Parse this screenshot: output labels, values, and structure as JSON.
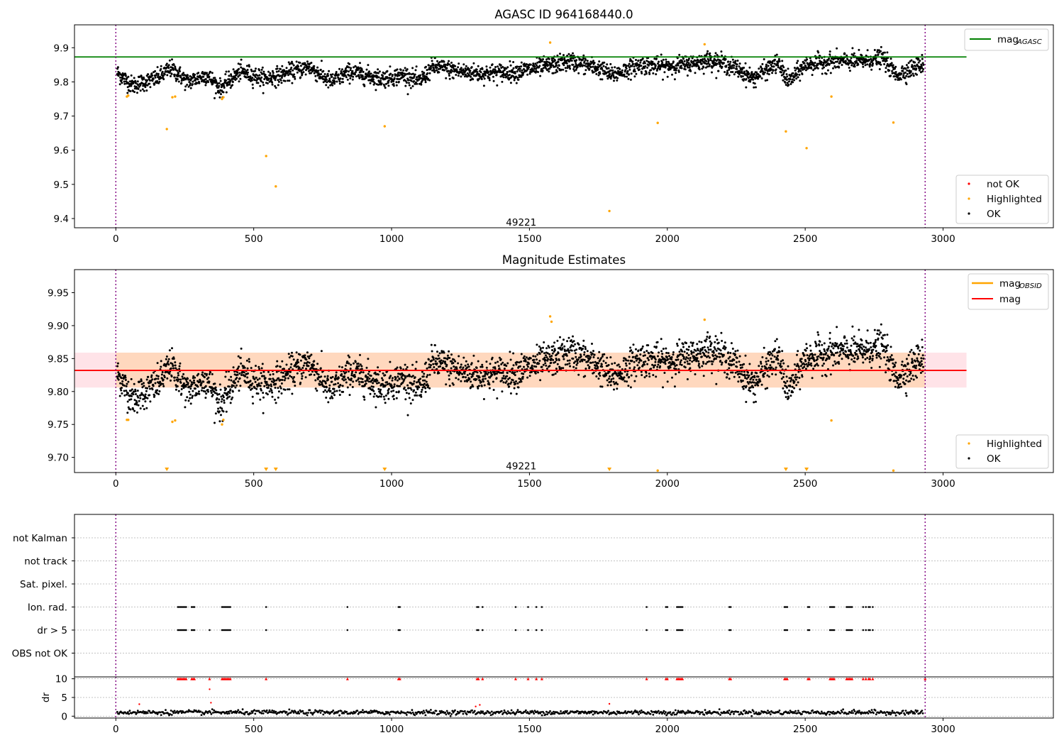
{
  "chart_data": [
    {
      "type": "scatter",
      "title": "AGASC ID 964168440.0",
      "xlim": [
        -150,
        3400
      ],
      "ylim": [
        9.373,
        9.967
      ],
      "xticks": [
        0,
        500,
        1000,
        1500,
        2000,
        2500,
        3000
      ],
      "yticks": [
        9.4,
        9.5,
        9.6,
        9.7,
        9.8,
        9.9
      ],
      "ytick_labels": [
        "9.4",
        "9.5",
        "9.6",
        "9.7",
        "9.8",
        "9.9"
      ],
      "grid": false,
      "legend_top": {
        "position": "top-right",
        "entries": [
          {
            "label_main": "mag",
            "label_sub": "AGASC",
            "color": "#008000",
            "kind": "line"
          }
        ]
      },
      "legend_bottom": {
        "position": "bottom-right",
        "entries": [
          {
            "label": "not OK",
            "color": "#ff0000",
            "kind": "point"
          },
          {
            "label": "Highlighted",
            "color": "#ffa500",
            "kind": "point"
          },
          {
            "label": "OK",
            "color": "#000000",
            "kind": "point"
          }
        ]
      },
      "hlines": [
        {
          "name": "mag_AGASC",
          "y": 9.873,
          "x_range": [
            -150,
            3085
          ],
          "color": "#008000"
        }
      ],
      "vlines": [
        {
          "x": 0,
          "color": "purple"
        },
        {
          "x": 2935,
          "color": "purple"
        }
      ],
      "annotation": {
        "text": "49221",
        "x": 1470,
        "y": 9.39
      },
      "ok_trend": {
        "x": [
          0,
          60,
          150,
          200,
          260,
          330,
          380,
          450,
          540,
          600,
          700,
          780,
          850,
          960,
          1050,
          1100,
          1150,
          1250,
          1320,
          1450,
          1560,
          1650,
          1750,
          1800,
          1900,
          1990,
          2100,
          2160,
          2250,
          2310,
          2400,
          2440,
          2500,
          2600,
          2700,
          2780,
          2830,
          2935
        ],
        "y": [
          9.83,
          9.79,
          9.81,
          9.84,
          9.8,
          9.82,
          9.78,
          9.83,
          9.81,
          9.82,
          9.845,
          9.8,
          9.83,
          9.81,
          9.82,
          9.8,
          9.845,
          9.83,
          9.825,
          9.83,
          9.845,
          9.86,
          9.84,
          9.82,
          9.85,
          9.845,
          9.855,
          9.865,
          9.84,
          9.81,
          9.855,
          9.8,
          9.85,
          9.86,
          9.86,
          9.87,
          9.82,
          9.855
        ],
        "spread": 0.02,
        "count": 2900
      },
      "highlighted": {
        "x": [
          40,
          45,
          185,
          205,
          215,
          385,
          390,
          545,
          580,
          975,
          1575,
          1790,
          1965,
          2135,
          2430,
          2505,
          2595,
          2820
        ],
        "y": [
          9.757,
          9.76,
          9.662,
          9.755,
          9.757,
          9.75,
          9.755,
          9.583,
          9.494,
          9.67,
          9.915,
          9.422,
          9.68,
          9.91,
          9.655,
          9.606,
          9.757,
          9.681
        ]
      },
      "not_ok": {
        "x": [],
        "y": []
      }
    },
    {
      "type": "scatter",
      "title": "Magnitude Estimates",
      "xlim": [
        -150,
        3400
      ],
      "ylim": [
        9.677,
        9.985
      ],
      "xticks": [
        0,
        500,
        1000,
        1500,
        2000,
        2500,
        3000
      ],
      "yticks": [
        9.7,
        9.75,
        9.8,
        9.85,
        9.9,
        9.95
      ],
      "ytick_labels": [
        "9.70",
        "9.75",
        "9.80",
        "9.85",
        "9.90",
        "9.95"
      ],
      "grid": false,
      "legend_top": {
        "position": "top-right",
        "entries": [
          {
            "label_main": "mag",
            "label_sub": "OBSID",
            "color": "#ffa500",
            "kind": "line"
          },
          {
            "label_main": "mag",
            "label_sub": "",
            "color": "#ff0000",
            "kind": "line"
          }
        ]
      },
      "legend_bottom": {
        "position": "bottom-right",
        "entries": [
          {
            "label": "Highlighted",
            "color": "#ffa500",
            "kind": "point"
          },
          {
            "label": "OK",
            "color": "#000000",
            "kind": "point"
          }
        ]
      },
      "hlines": [
        {
          "name": "mag",
          "y": 9.832,
          "x_range": [
            -150,
            3085
          ],
          "color": "#ff0000"
        }
      ],
      "bands": [
        {
          "y0": 9.806,
          "y1": 9.859,
          "x_range": [
            -150,
            3085
          ],
          "color": "#ffc0cb",
          "opacity": 0.45
        },
        {
          "y0": 9.806,
          "y1": 9.859,
          "x_range": [
            0,
            2935
          ],
          "color": "#ffa500",
          "opacity": 0.18
        }
      ],
      "vlines": [
        {
          "x": 0,
          "color": "purple"
        },
        {
          "x": 2935,
          "color": "purple"
        }
      ],
      "annotation": {
        "text": "49221",
        "x": 1470,
        "y": 9.687
      },
      "highlighted": {
        "x": [
          40,
          45,
          205,
          215,
          385,
          390,
          1575,
          1580,
          2135,
          2595,
          1965,
          2820
        ],
        "y": [
          9.757,
          9.757,
          9.754,
          9.756,
          9.75,
          9.757,
          9.914,
          9.906,
          9.909,
          9.756,
          9.68,
          9.68
        ]
      },
      "clipped_markers": {
        "x": [
          185,
          545,
          580,
          975,
          1790,
          2430,
          2505
        ],
        "color": "#ffa500"
      }
    },
    {
      "type": "scatter",
      "title": "",
      "xlim": [
        -150,
        3400
      ],
      "xticks": [
        0,
        500,
        1000,
        1500,
        2000,
        2500,
        3000
      ],
      "flag_rows": [
        "not Kalman",
        "not track",
        "Sat. pixel.",
        "Ion. rad.",
        "dr > 5",
        "OBS not OK"
      ],
      "grid": true,
      "vlines": [
        {
          "x": 0,
          "color": "purple"
        },
        {
          "x": 2935,
          "color": "purple"
        }
      ],
      "ion_rad_x": [
        225,
        230,
        235,
        240,
        245,
        250,
        255,
        275,
        280,
        285,
        385,
        390,
        395,
        400,
        405,
        410,
        415,
        545,
        840,
        1025,
        1030,
        1310,
        1315,
        1330,
        1450,
        1495,
        1525,
        1545,
        1925,
        1995,
        2000,
        2035,
        2040,
        2045,
        2050,
        2055,
        2225,
        2230,
        2425,
        2430,
        2435,
        2510,
        2515,
        2590,
        2595,
        2600,
        2605,
        2650,
        2655,
        2660,
        2665,
        2670,
        2710,
        2720,
        2730,
        2735,
        2745
      ],
      "dr_gt5_x": [
        225,
        230,
        235,
        240,
        245,
        250,
        255,
        275,
        280,
        285,
        340,
        385,
        390,
        395,
        400,
        405,
        410,
        415,
        545,
        840,
        1025,
        1030,
        1310,
        1315,
        1330,
        1450,
        1495,
        1525,
        1545,
        1925,
        1995,
        2000,
        2035,
        2040,
        2045,
        2050,
        2055,
        2225,
        2230,
        2425,
        2430,
        2435,
        2510,
        2515,
        2590,
        2595,
        2600,
        2605,
        2650,
        2655,
        2660,
        2665,
        2670,
        2710,
        2720,
        2730,
        2735,
        2745
      ]
    },
    {
      "type": "scatter",
      "ylabel": "dr",
      "xlim": [
        -150,
        3400
      ],
      "ylim": [
        -0.5,
        10.5
      ],
      "yticks": [
        0,
        5,
        10
      ],
      "xticks": [
        0,
        500,
        1000,
        1500,
        2000,
        2500,
        3000
      ],
      "grid": true,
      "vlines": [
        {
          "x": 0,
          "color": "purple"
        },
        {
          "x": 2935,
          "color": "purple"
        }
      ],
      "dr_trend": {
        "mean": 1.0,
        "spread": 0.6,
        "count": 900
      },
      "red_points_capped": {
        "y": 10
      },
      "red_points_low": {
        "x": [
          85,
          340,
          345,
          1790,
          1305,
          1320
        ],
        "y": [
          3.2,
          7.2,
          3.6,
          3.3,
          2.6,
          3.0
        ]
      }
    }
  ]
}
